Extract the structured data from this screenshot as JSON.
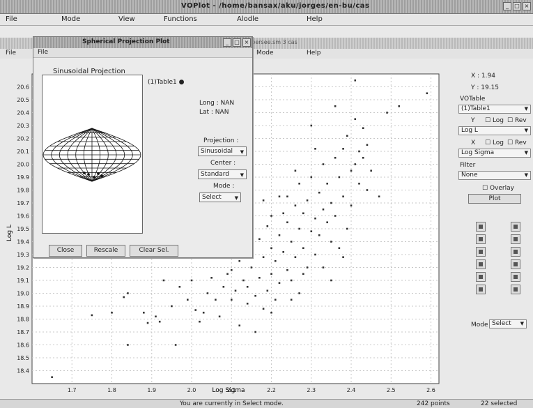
{
  "main_window": {
    "title": "VOPlot - /home/bansax/aku/jorges/en-bu/cas",
    "menu": [
      "File",
      "Mode",
      "View",
      "Functions",
      "Alodle",
      "Help"
    ]
  },
  "inner_window": {
    "title": "cas1d1 persee.sm 3 cas",
    "menu": [
      "File",
      "Mode",
      "Help"
    ]
  },
  "dialog": {
    "title": "Spherical Projection Plot",
    "menu_file": "File",
    "projection_title": "Sinusoidal Projection",
    "legend": "(1)Table1",
    "long_label": "Long : NAN",
    "lat_label": "Lat : NAN",
    "projection_label": "Projection :",
    "projection_value": "Sinusoidal",
    "center_label": "Center :",
    "center_value": "Standard",
    "mode_label": "Mode :",
    "mode_value": "Select",
    "buttons": {
      "close": "Close",
      "rescale": "Rescale",
      "clear_sel": "Clear Sel."
    }
  },
  "right_panel": {
    "x_readout": "X : 1.94",
    "y_readout": "Y : 19.15",
    "votable_label": "VOTable",
    "votable_value": "(1)Table1",
    "y_axis_row": "Y",
    "log_label": "Log",
    "rev_label": "Rev",
    "y_column": "Log L",
    "x_axis_row": "X",
    "x_column": "Log Sigma",
    "filter_label": "Filter",
    "filter_value": "None",
    "overlay_label": "Overlay",
    "plot_button": "Plot",
    "mode_label": "Mode",
    "mode_value": "Select"
  },
  "status_bar": {
    "message": "You are currently in Select mode.",
    "points": "242 points",
    "selected": "22 selected"
  },
  "icons": {
    "toolbar": [
      "histogram-icon",
      "zoom-in-icon",
      "fit-icon",
      "zoom-out-icon",
      "select-icon",
      "line-icon",
      "point-icon",
      "grid-icon",
      "info-icon",
      "table-icon",
      "save-icon",
      "print-icon",
      "help-icon"
    ]
  },
  "chart_data": {
    "type": "scatter",
    "xlabel": "Log Sigma",
    "ylabel": "Log L",
    "xlim": [
      1.6,
      2.62
    ],
    "ylim": [
      18.3,
      20.7
    ],
    "x_ticks": [
      "1.7",
      "1.8",
      "1.9",
      "2.0",
      "2.1",
      "2.2",
      "2.3",
      "2.4",
      "2.5",
      "2.6"
    ],
    "y_ticks": [
      "18.4",
      "18.5",
      "18.6",
      "18.7",
      "18.8",
      "18.9",
      "19.0",
      "19.1",
      "19.2",
      "19.3",
      "19.4",
      "19.5",
      "19.6",
      "19.7",
      "19.8",
      "19.9",
      "20.0",
      "20.1",
      "20.2",
      "20.3",
      "20.4",
      "20.5",
      "20.6"
    ],
    "grid": true,
    "legend": "(1)Table1",
    "points": [
      [
        1.65,
        18.35
      ],
      [
        1.75,
        18.83
      ],
      [
        1.8,
        18.85
      ],
      [
        1.83,
        18.97
      ],
      [
        1.84,
        19.0
      ],
      [
        1.84,
        18.6
      ],
      [
        1.88,
        18.85
      ],
      [
        1.89,
        18.77
      ],
      [
        1.91,
        18.82
      ],
      [
        1.92,
        18.78
      ],
      [
        1.93,
        19.1
      ],
      [
        1.95,
        18.9
      ],
      [
        1.96,
        18.6
      ],
      [
        1.97,
        19.05
      ],
      [
        1.99,
        18.95
      ],
      [
        2.0,
        19.1
      ],
      [
        2.01,
        18.87
      ],
      [
        2.02,
        18.78
      ],
      [
        2.03,
        18.85
      ],
      [
        2.04,
        19.0
      ],
      [
        2.05,
        19.12
      ],
      [
        2.06,
        18.95
      ],
      [
        2.07,
        18.82
      ],
      [
        2.08,
        19.05
      ],
      [
        2.09,
        19.15
      ],
      [
        2.1,
        18.95
      ],
      [
        2.1,
        19.18
      ],
      [
        2.11,
        19.02
      ],
      [
        2.12,
        18.75
      ],
      [
        2.12,
        19.25
      ],
      [
        2.13,
        19.1
      ],
      [
        2.14,
        18.92
      ],
      [
        2.14,
        19.05
      ],
      [
        2.15,
        19.2
      ],
      [
        2.15,
        19.35
      ],
      [
        2.16,
        18.98
      ],
      [
        2.16,
        18.7
      ],
      [
        2.17,
        19.12
      ],
      [
        2.17,
        19.42
      ],
      [
        2.18,
        19.28
      ],
      [
        2.18,
        18.88
      ],
      [
        2.19,
        19.02
      ],
      [
        2.19,
        19.52
      ],
      [
        2.2,
        19.15
      ],
      [
        2.2,
        19.35
      ],
      [
        2.2,
        19.6
      ],
      [
        2.21,
        19.25
      ],
      [
        2.21,
        18.95
      ],
      [
        2.22,
        19.45
      ],
      [
        2.22,
        19.08
      ],
      [
        2.23,
        19.62
      ],
      [
        2.23,
        19.32
      ],
      [
        2.24,
        19.18
      ],
      [
        2.24,
        19.55
      ],
      [
        2.24,
        19.75
      ],
      [
        2.25,
        19.4
      ],
      [
        2.25,
        19.1
      ],
      [
        2.26,
        19.68
      ],
      [
        2.26,
        19.28
      ],
      [
        2.27,
        19.5
      ],
      [
        2.27,
        19.85
      ],
      [
        2.28,
        19.35
      ],
      [
        2.28,
        19.62
      ],
      [
        2.29,
        19.2
      ],
      [
        2.29,
        19.72
      ],
      [
        2.3,
        19.48
      ],
      [
        2.3,
        19.9
      ],
      [
        2.3,
        20.3
      ],
      [
        2.31,
        19.58
      ],
      [
        2.31,
        19.3
      ],
      [
        2.32,
        19.78
      ],
      [
        2.32,
        19.45
      ],
      [
        2.33,
        19.65
      ],
      [
        2.33,
        20.0
      ],
      [
        2.34,
        19.55
      ],
      [
        2.34,
        19.85
      ],
      [
        2.35,
        19.4
      ],
      [
        2.35,
        19.7
      ],
      [
        2.36,
        20.05
      ],
      [
        2.36,
        19.6
      ],
      [
        2.37,
        19.9
      ],
      [
        2.37,
        19.35
      ],
      [
        2.38,
        20.12
      ],
      [
        2.38,
        19.75
      ],
      [
        2.39,
        19.5
      ],
      [
        2.39,
        20.22
      ],
      [
        2.4,
        19.95
      ],
      [
        2.4,
        19.68
      ],
      [
        2.41,
        20.35
      ],
      [
        2.41,
        20.0
      ],
      [
        2.42,
        20.1
      ],
      [
        2.42,
        19.85
      ],
      [
        2.43,
        20.28
      ],
      [
        2.43,
        20.05
      ],
      [
        2.44,
        19.8
      ],
      [
        2.44,
        20.15
      ],
      [
        2.45,
        19.95
      ],
      [
        2.47,
        19.75
      ],
      [
        2.49,
        20.4
      ],
      [
        2.52,
        20.45
      ],
      [
        2.59,
        20.55
      ],
      [
        2.41,
        20.65
      ],
      [
        2.35,
        19.1
      ],
      [
        2.27,
        19.0
      ],
      [
        2.2,
        18.85
      ],
      [
        2.25,
        18.95
      ],
      [
        2.33,
        19.2
      ],
      [
        2.15,
        19.5
      ],
      [
        2.22,
        19.75
      ],
      [
        2.28,
        19.15
      ],
      [
        2.31,
        20.12
      ],
      [
        2.36,
        20.45
      ],
      [
        2.38,
        19.28
      ],
      [
        2.26,
        19.95
      ],
      [
        2.18,
        19.72
      ]
    ]
  }
}
